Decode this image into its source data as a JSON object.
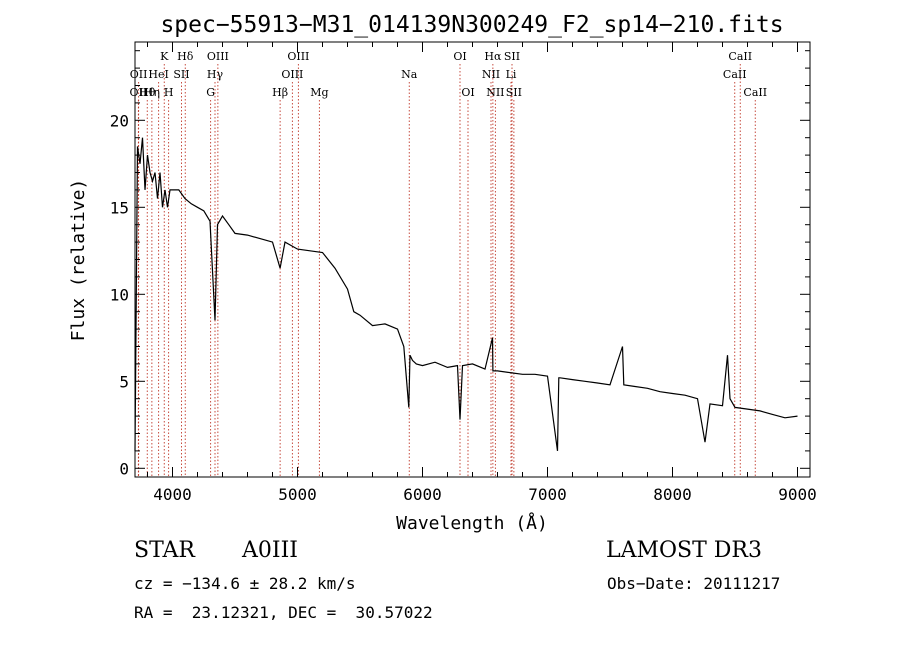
{
  "chart_data": {
    "type": "line",
    "title": "spec−55913−M31_014139N300249_F2_sp14−210.fits",
    "xlabel": "Wavelength (Å)",
    "ylabel": "Flux (relative)",
    "xlim": [
      3700,
      9100
    ],
    "ylim": [
      -0.5,
      24.5
    ],
    "xticks": [
      4000,
      5000,
      6000,
      7000,
      8000,
      9000
    ],
    "yticks": [
      0,
      5,
      10,
      15,
      20
    ],
    "grid": false,
    "series": [
      {
        "x": [
          3700,
          3720,
          3740,
          3760,
          3780,
          3800,
          3820,
          3840,
          3860,
          3880,
          3900,
          3920,
          3940,
          3960,
          3980,
          4000,
          4050,
          4100,
          4150,
          4200,
          4250,
          4300,
          4340,
          4360,
          4400,
          4450,
          4500,
          4600,
          4700,
          4800,
          4861,
          4900,
          5000,
          5100,
          5200,
          5300,
          5400,
          5450,
          5500,
          5600,
          5700,
          5800,
          5850,
          5890,
          5900,
          5920,
          5950,
          6000,
          6100,
          6200,
          6280,
          6300,
          6320,
          6400,
          6500,
          6560,
          6563,
          6600,
          6700,
          6800,
          6900,
          7000,
          7080,
          7090,
          7100,
          7200,
          7300,
          7400,
          7500,
          7600,
          7610,
          7700,
          7800,
          7900,
          8000,
          8100,
          8200,
          8260,
          8300,
          8400,
          8440,
          8460,
          8500,
          8600,
          8700,
          8800,
          8900,
          9000
        ],
        "values": [
          1.0,
          18.5,
          17.5,
          19.0,
          16.0,
          18.0,
          17.0,
          16.5,
          17.0,
          15.5,
          17.0,
          15.0,
          16.0,
          15.0,
          16.0,
          16.0,
          16.0,
          15.5,
          15.2,
          15.0,
          14.8,
          14.2,
          8.5,
          14.0,
          14.5,
          14.0,
          13.5,
          13.4,
          13.2,
          13.0,
          11.5,
          13.0,
          12.6,
          12.5,
          12.4,
          11.5,
          10.3,
          9.0,
          8.8,
          8.2,
          8.3,
          8.0,
          7.0,
          3.5,
          6.5,
          6.2,
          6.0,
          5.9,
          6.1,
          5.8,
          5.9,
          2.8,
          5.9,
          6.0,
          5.7,
          7.5,
          5.6,
          5.6,
          5.5,
          5.4,
          5.4,
          5.3,
          1.0,
          5.2,
          5.2,
          5.1,
          5.0,
          4.9,
          4.8,
          7.0,
          4.8,
          4.7,
          4.6,
          4.4,
          4.3,
          4.2,
          4.0,
          1.5,
          3.7,
          3.6,
          6.5,
          4.0,
          3.5,
          3.4,
          3.3,
          3.1,
          2.9,
          3.0
        ]
      }
    ],
    "line_labels": [
      {
        "label": "OII",
        "x": 3727,
        "row": 2
      },
      {
        "label": "OII",
        "x": 3729,
        "row": 1
      },
      {
        "label": "Hθ",
        "x": 3798,
        "row": 2
      },
      {
        "label": "Hη",
        "x": 3835,
        "row": 2
      },
      {
        "label": "HeI",
        "x": 3889,
        "row": 1
      },
      {
        "label": "K",
        "x": 3934,
        "row": 0
      },
      {
        "label": "H",
        "x": 3969,
        "row": 2
      },
      {
        "label": "SII",
        "x": 4072,
        "row": 1
      },
      {
        "label": "Hδ",
        "x": 4102,
        "row": 0
      },
      {
        "label": "G",
        "x": 4305,
        "row": 2
      },
      {
        "label": "OIII",
        "x": 4363,
        "row": 0
      },
      {
        "label": "Hγ",
        "x": 4340,
        "row": 1
      },
      {
        "label": "Hβ",
        "x": 4861,
        "row": 2
      },
      {
        "label": "OIII",
        "x": 4959,
        "row": 1
      },
      {
        "label": "OIII",
        "x": 5007,
        "row": 0
      },
      {
        "label": "Mg",
        "x": 5175,
        "row": 2
      },
      {
        "label": "Na",
        "x": 5894,
        "row": 1
      },
      {
        "label": "OI",
        "x": 6300,
        "row": 0
      },
      {
        "label": "OI",
        "x": 6364,
        "row": 2
      },
      {
        "label": "NII",
        "x": 6548,
        "row": 1
      },
      {
        "label": "Hα",
        "x": 6563,
        "row": 0
      },
      {
        "label": "NII",
        "x": 6583,
        "row": 2
      },
      {
        "label": "Li",
        "x": 6708,
        "row": 1
      },
      {
        "label": "SII",
        "x": 6716,
        "row": 0
      },
      {
        "label": "SII",
        "x": 6731,
        "row": 2
      },
      {
        "label": "CaII",
        "x": 8498,
        "row": 1
      },
      {
        "label": "CaII",
        "x": 8542,
        "row": 0
      },
      {
        "label": "CaII",
        "x": 8662,
        "row": 2
      }
    ]
  },
  "info": {
    "object_class": "STAR",
    "subclass": "A0III",
    "survey": "LAMOST DR3",
    "cz_line": "cz = −134.6 ± 28.2 km/s",
    "obs_date_line": "Obs−Date: 20111217",
    "coords_line": "RA =  23.12321, DEC =  30.57022"
  },
  "colors": {
    "spectrum": "#000000",
    "line_markers": "#c0392b",
    "axes": "#000000"
  }
}
